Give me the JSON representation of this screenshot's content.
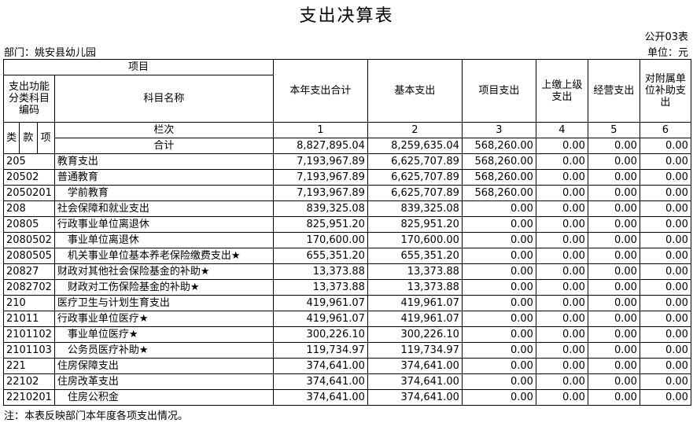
{
  "header": {
    "title": "支出决算表",
    "form_no": "公开03表",
    "department": "部门：姚安县幼儿园",
    "unit": "单位：元"
  },
  "table": {
    "col_headers": {
      "item": "项目",
      "code": "支出功能分类科目编码",
      "name": "科目名称",
      "total": "本年支出合计",
      "basic": "基本支出",
      "project": "项目支出",
      "upper": "上缴上级支出",
      "business": "经营支出",
      "subsidy": "对附属单位补助支出",
      "lei": "类",
      "kuan": "款",
      "xiang": "项",
      "column_no": "栏次",
      "nums": [
        "1",
        "2",
        "3",
        "4",
        "5",
        "6"
      ]
    },
    "sum_row": {
      "label": "合计",
      "values": [
        "8,827,895.04",
        "8,259,635.04",
        "568,260.00",
        "0.00",
        "0.00",
        "0.00"
      ]
    },
    "rows": [
      [
        "205",
        "教育支出",
        "7,193,967.89",
        "6,625,707.89",
        "568,260.00",
        "0.00",
        "0.00",
        "0.00"
      ],
      [
        "20502",
        "普通教育",
        "7,193,967.89",
        "6,625,707.89",
        "568,260.00",
        "0.00",
        "0.00",
        "0.00"
      ],
      [
        "2050201",
        "学前教育",
        "7,193,967.89",
        "6,625,707.89",
        "568,260.00",
        "0.00",
        "0.00",
        "0.00"
      ],
      [
        "208",
        "社会保障和就业支出",
        "839,325.08",
        "839,325.08",
        "0.00",
        "0.00",
        "0.00",
        "0.00"
      ],
      [
        "20805",
        "行政事业单位离退休",
        "825,951.20",
        "825,951.20",
        "0.00",
        "0.00",
        "0.00",
        "0.00"
      ],
      [
        "2080502",
        "事业单位离退休",
        "170,600.00",
        "170,600.00",
        "0.00",
        "0.00",
        "0.00",
        "0.00"
      ],
      [
        "2080505",
        "机关事业单位基本养老保险缴费支出★",
        "655,351.20",
        "655,351.20",
        "0.00",
        "0.00",
        "0.00",
        "0.00"
      ],
      [
        "20827",
        "财政对其他社会保险基金的补助★",
        "13,373.88",
        "13,373.88",
        "0.00",
        "0.00",
        "0.00",
        "0.00"
      ],
      [
        "2082702",
        "财政对工伤保险基金的补助★",
        "13,373.88",
        "13,373.88",
        "0.00",
        "0.00",
        "0.00",
        "0.00"
      ],
      [
        "210",
        "医疗卫生与计划生育支出",
        "419,961.07",
        "419,961.07",
        "0.00",
        "0.00",
        "0.00",
        "0.00"
      ],
      [
        "21011",
        "行政事业单位医疗★",
        "419,961.07",
        "419,961.07",
        "0.00",
        "0.00",
        "0.00",
        "0.00"
      ],
      [
        "2101102",
        "事业单位医疗★",
        "300,226.10",
        "300,226.10",
        "0.00",
        "0.00",
        "0.00",
        "0.00"
      ],
      [
        "2101103",
        "公务员医疗补助★",
        "119,734.97",
        "119,734.97",
        "0.00",
        "0.00",
        "0.00",
        "0.00"
      ],
      [
        "221",
        "住房保障支出",
        "374,641.00",
        "374,641.00",
        "0.00",
        "0.00",
        "0.00",
        "0.00"
      ],
      [
        "22102",
        "住房改革支出",
        "374,641.00",
        "374,641.00",
        "0.00",
        "0.00",
        "0.00",
        "0.00"
      ],
      [
        "2210201",
        "住房公积金",
        "374,641.00",
        "374,641.00",
        "0.00",
        "0.00",
        "0.00",
        "0.00"
      ]
    ]
  },
  "footer": {
    "note": "注：本表反映部门本年度各项支出情况。"
  }
}
